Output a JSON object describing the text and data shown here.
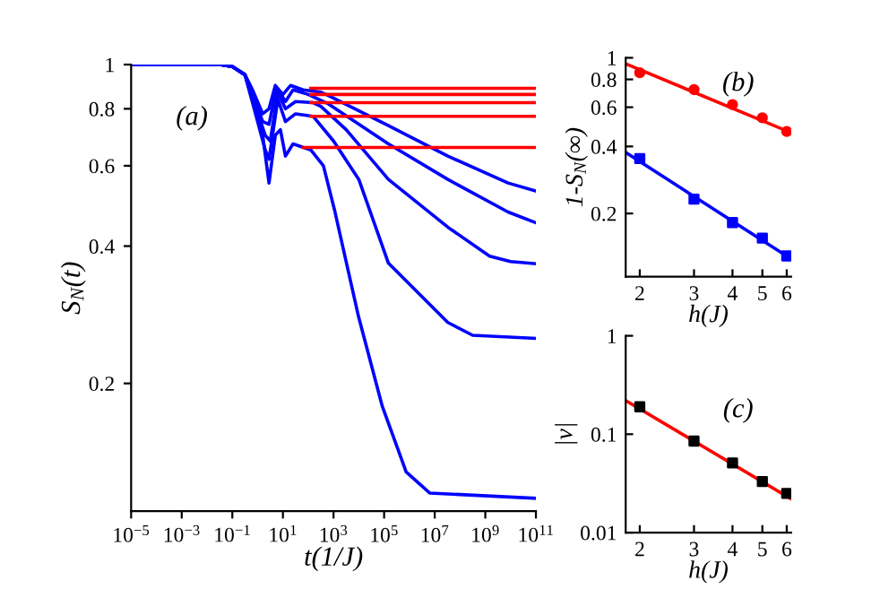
{
  "chart_data": [
    {
      "type": "line",
      "xlabel": "t(1/J)",
      "ylabel": "S$_{N}$(t)",
      "annotations": [
        "(a)"
      ],
      "log": "xy",
      "xlim": [
        1e-05,
        100000000000.0
      ],
      "ylim": [
        0.105,
        1
      ],
      "xticks": [
        {
          "value": 1e-05,
          "label": "10$^{−5}$"
        },
        {
          "value": 0.001,
          "label": "10$^{−3}$"
        },
        {
          "value": 0.1,
          "label": "10$^{−1}$"
        },
        {
          "value": 10,
          "label": "10$^{1}$"
        },
        {
          "value": 1000,
          "label": "10$^{3}$"
        },
        {
          "value": 100000.0,
          "label": "10$^{5}$"
        },
        {
          "value": 10000000.0,
          "label": "10$^{7}$"
        },
        {
          "value": 1000000000.0,
          "label": "10$^{9}$"
        },
        {
          "value": 100000000000.0,
          "label": "10$^{11}$"
        }
      ],
      "yticks": [
        0.2,
        0.4,
        0.6,
        0.8,
        1
      ],
      "series": [
        {
          "color": "#0000ff",
          "x": [
            1e-05,
            0.0316,
            0.1,
            0.316,
            0.631,
            1.585,
            2.82,
            5.01,
            10,
            20,
            63.1,
            316,
            631,
            147911,
            33100000.0,
            7940000000.0,
            100000000000.0
          ],
          "values": [
            1,
            1,
            0.99,
            0.95,
            0.88,
            0.78,
            0.8,
            0.9,
            0.86,
            0.9,
            0.88,
            0.87,
            0.855,
            0.735,
            0.63,
            0.55,
            0.528
          ]
        },
        {
          "color": "#0000ff",
          "x": [
            1e-05,
            0.0316,
            0.1,
            0.316,
            1.585,
            2.82,
            5.62,
            12.6,
            25.1,
            100,
            631,
            147911,
            33100000.0,
            7940000000.0,
            100000000000.0
          ],
          "values": [
            1,
            1,
            0.99,
            0.95,
            0.75,
            0.74,
            0.89,
            0.83,
            0.88,
            0.86,
            0.82,
            0.67,
            0.56,
            0.475,
            0.45
          ]
        },
        {
          "color": "#0000ff",
          "x": [
            1e-05,
            0.0316,
            0.1,
            0.316,
            2.0,
            3.16,
            6.31,
            12.6,
            31.6,
            158,
            316,
            3162,
            147911,
            33100000.0,
            1480000000.0,
            10000000000.0,
            100000000000.0
          ],
          "values": [
            1,
            1,
            0.99,
            0.95,
            0.7,
            0.68,
            0.87,
            0.8,
            0.83,
            0.825,
            0.81,
            0.72,
            0.56,
            0.44,
            0.38,
            0.37,
            0.366
          ]
        },
        {
          "color": "#0000ff",
          "x": [
            1e-05,
            0.0316,
            0.1,
            0.316,
            2.0,
            2.82,
            6.31,
            12.6,
            31.6,
            158,
            1000,
            10000.0,
            147911,
            33100000.0,
            316000000.0,
            100000000000.0
          ],
          "values": [
            1,
            1,
            0.99,
            0.95,
            0.65,
            0.62,
            0.84,
            0.75,
            0.78,
            0.77,
            0.68,
            0.56,
            0.367,
            0.272,
            0.255,
            0.251
          ]
        },
        {
          "color": "#0000ff",
          "x": [
            1e-05,
            0.0316,
            0.1,
            0.316,
            1.585,
            2.82,
            5.01,
            7.94,
            12.6,
            25.1,
            126,
            398,
            1096,
            9772,
            85114,
            741310,
            6310000.0,
            100000000000.0
          ],
          "values": [
            1,
            1,
            0.99,
            0.95,
            0.7,
            0.55,
            0.7,
            0.72,
            0.63,
            0.67,
            0.65,
            0.6,
            0.48,
            0.28,
            0.178,
            0.128,
            0.115,
            0.112
          ]
        },
        {
          "color": "#ff0000",
          "x": [
            126,
            1000000.0,
            100000000000.0
          ],
          "values": [
            0.887,
            0.887,
            0.887
          ]
        },
        {
          "color": "#ff0000",
          "x": [
            126,
            1000000.0,
            100000000000.0
          ],
          "values": [
            0.86,
            0.86,
            0.86
          ]
        },
        {
          "color": "#ff0000",
          "x": [
            126,
            1000000.0,
            100000000000.0
          ],
          "values": [
            0.825,
            0.825,
            0.825
          ]
        },
        {
          "color": "#ff0000",
          "x": [
            126,
            1000000.0,
            100000000000.0
          ],
          "values": [
            0.77,
            0.77,
            0.77
          ]
        },
        {
          "color": "#ff0000",
          "x": [
            63.1,
            1000000.0,
            100000000000.0
          ],
          "values": [
            0.658,
            0.658,
            0.658
          ]
        }
      ]
    },
    {
      "type": "scatter",
      "xlabel": "h(J)",
      "ylabel": "1-S$_{N}$(∞)",
      "annotations": [
        "(b)"
      ],
      "log": "xy",
      "xlim": [
        1.8,
        6.2
      ],
      "ylim": [
        0.104,
        1
      ],
      "xticks": [
        2,
        3,
        4,
        5,
        6
      ],
      "yticks": [
        0.2,
        0.4,
        0.6,
        0.8,
        1
      ],
      "series": [
        {
          "type": "scatter",
          "marker": "circle",
          "color": "#ff0000",
          "x": [
            2,
            3,
            4,
            5,
            6
          ],
          "values": [
            0.857,
            0.72,
            0.617,
            0.538,
            0.467
          ]
        },
        {
          "type": "line",
          "color": "#ff0000",
          "x": [
            1.8,
            6.2
          ],
          "values": [
            0.94,
            0.461
          ]
        },
        {
          "type": "scatter",
          "marker": "square",
          "color": "#0000ff",
          "x": [
            2,
            3,
            4,
            5,
            6
          ],
          "values": [
            0.353,
            0.232,
            0.182,
            0.155,
            0.129
          ]
        },
        {
          "type": "line",
          "color": "#0000ff",
          "x": [
            1.8,
            6.2
          ],
          "values": [
            0.376,
            0.125
          ]
        }
      ]
    },
    {
      "type": "scatter",
      "xlabel": "h(J)",
      "ylabel": "|ν|",
      "annotations": [
        "(c)"
      ],
      "log": "xy",
      "xlim": [
        1.8,
        6.2
      ],
      "ylim": [
        0.01,
        1
      ],
      "xticks": [
        2,
        3,
        4,
        5,
        6
      ],
      "yticks": [
        0.01,
        0.1,
        1
      ],
      "series": [
        {
          "type": "scatter",
          "marker": "square",
          "color": "#000000",
          "x": [
            2,
            3,
            4,
            5,
            6
          ],
          "values": [
            0.19,
            0.085,
            0.051,
            0.033,
            0.025
          ]
        },
        {
          "type": "line",
          "color": "#ff0000",
          "x": [
            1.8,
            6.2
          ],
          "values": [
            0.22,
            0.022
          ]
        }
      ]
    }
  ]
}
